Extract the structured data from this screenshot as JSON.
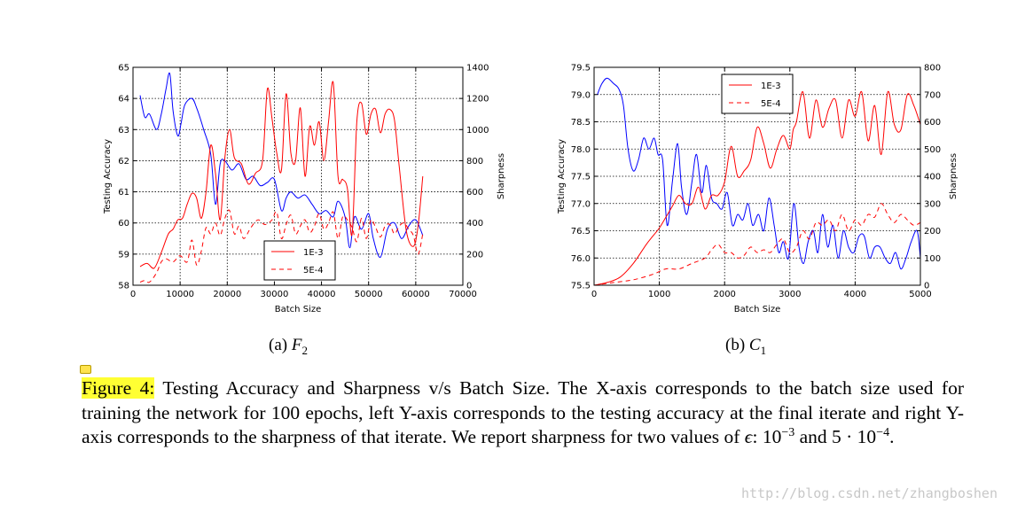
{
  "chart_data": [
    {
      "type": "line",
      "xlabel": "Batch Size",
      "ylabel_left": "Testing Accuracy",
      "ylabel_right": "Sharpness",
      "xlim": [
        0,
        70000
      ],
      "ylim_left": [
        58,
        65
      ],
      "ylim_right": [
        0,
        1400
      ],
      "xticks": [
        "0",
        "10000",
        "20000",
        "30000",
        "40000",
        "50000",
        "60000",
        "70000"
      ],
      "yticks_left": [
        "58",
        "59",
        "60",
        "61",
        "62",
        "63",
        "64",
        "65"
      ],
      "yticks_right": [
        "0",
        "200",
        "400",
        "600",
        "800",
        "1000",
        "1200",
        "1400"
      ],
      "grid": true,
      "legend_position": "lower-center",
      "subplot_label": "(a)",
      "subplot_symbol": "F",
      "subplot_subscript": "2",
      "colors": {
        "accuracy": "#0000ff",
        "sharpness": "#ff0000"
      },
      "series": [
        {
          "axis": "left",
          "style": "solid",
          "x": [
            1500,
            2500,
            3500,
            5000,
            6000,
            7000,
            7800,
            8500,
            9500,
            10200,
            11000,
            12500,
            13500,
            15000,
            16500,
            17500,
            18500,
            19500,
            21000,
            22500,
            24000,
            25500,
            27000,
            28500,
            30000,
            31500,
            32500,
            33500,
            35000,
            36500,
            38000,
            39500,
            41000,
            42500,
            43500,
            45000,
            46000,
            47000,
            48500,
            50000,
            51000,
            52500,
            54000,
            55500,
            57000,
            58500,
            60000,
            61500
          ],
          "y": [
            64.1,
            63.4,
            63.5,
            63.0,
            63.5,
            64.3,
            64.8,
            63.6,
            62.8,
            63.2,
            63.8,
            64.0,
            63.7,
            63.0,
            62.2,
            60.6,
            61.9,
            62.0,
            61.7,
            61.9,
            61.4,
            61.5,
            61.2,
            61.3,
            61.4,
            60.4,
            60.8,
            61.0,
            60.8,
            60.9,
            60.6,
            60.3,
            60.4,
            60.2,
            60.7,
            60.2,
            59.2,
            60.2,
            59.8,
            60.3,
            59.5,
            58.9,
            59.8,
            60.0,
            59.5,
            59.9,
            60.1,
            59.6
          ]
        },
        {
          "axis": "right",
          "style": "solid",
          "name": "1E-3",
          "x": [
            1500,
            3000,
            4500,
            6000,
            7500,
            8500,
            9500,
            10500,
            11500,
            12500,
            13500,
            14500,
            15500,
            16500,
            17500,
            18500,
            19500,
            20500,
            21500,
            23000,
            24500,
            26000,
            27500,
            28500,
            29500,
            30500,
            31500,
            32500,
            33500,
            34500,
            35500,
            36500,
            37500,
            38500,
            39500,
            40500,
            41500,
            42500,
            43500,
            44500,
            45500,
            46500,
            47500,
            48500,
            49500,
            50500,
            51500,
            52500,
            53500,
            54500,
            55500,
            56500,
            58000,
            59500,
            60500,
            61500
          ],
          "y": [
            120,
            140,
            110,
            210,
            330,
            360,
            420,
            430,
            520,
            590,
            560,
            430,
            600,
            900,
            720,
            420,
            820,
            1000,
            820,
            780,
            650,
            720,
            800,
            1260,
            1070,
            850,
            740,
            1230,
            850,
            800,
            1140,
            700,
            1020,
            900,
            1050,
            800,
            1050,
            1300,
            700,
            680,
            620,
            330,
            1050,
            1170,
            970,
            1100,
            1130,
            980,
            1100,
            1130,
            1060,
            760,
            350,
            250,
            380,
            700
          ]
        },
        {
          "axis": "right",
          "style": "dashed",
          "name": "5E-4",
          "x": [
            1500,
            2500,
            3500,
            5000,
            6000,
            7000,
            8500,
            10000,
            11500,
            12500,
            13500,
            14500,
            15500,
            16500,
            17500,
            18500,
            19500,
            20500,
            21500,
            22500,
            23500,
            25000,
            26500,
            28000,
            29500,
            30500,
            31500,
            32500,
            33500,
            34500,
            35500,
            36500,
            37500,
            38500,
            39500,
            40500,
            41500,
            42500,
            43500,
            44500,
            45500,
            46500,
            47500,
            48500,
            49500,
            50500,
            51500,
            52500,
            53500,
            54500,
            55500,
            56500,
            57500,
            58500,
            59500,
            60500,
            61500
          ],
          "y": [
            20,
            30,
            20,
            80,
            150,
            170,
            150,
            190,
            150,
            290,
            130,
            220,
            370,
            330,
            400,
            320,
            430,
            480,
            330,
            380,
            300,
            370,
            420,
            390,
            420,
            470,
            300,
            390,
            450,
            330,
            380,
            420,
            340,
            380,
            460,
            360,
            400,
            470,
            300,
            440,
            420,
            370,
            280,
            430,
            300,
            420,
            370,
            310,
            380,
            390,
            330,
            380,
            400,
            360,
            320,
            200,
            330
          ]
        }
      ]
    },
    {
      "type": "line",
      "xlabel": "Batch Size",
      "ylabel_left": "Testing Accuracy",
      "ylabel_right": "Sharpness",
      "xlim": [
        0,
        5000
      ],
      "ylim_left": [
        75.5,
        79.5
      ],
      "ylim_right": [
        0,
        800
      ],
      "xticks": [
        "0",
        "1000",
        "2000",
        "3000",
        "4000",
        "5000"
      ],
      "yticks_left": [
        "75.5",
        "76.0",
        "76.5",
        "77.0",
        "77.5",
        "78.0",
        "78.5",
        "79.0",
        "79.5"
      ],
      "yticks_right": [
        "0",
        "100",
        "200",
        "300",
        "400",
        "500",
        "600",
        "700",
        "800"
      ],
      "grid": true,
      "legend_position": "upper-left",
      "subplot_label": "(b)",
      "subplot_symbol": "C",
      "subplot_subscript": "1",
      "colors": {
        "accuracy": "#0000ff",
        "sharpness": "#ff0000"
      },
      "series": [
        {
          "axis": "left",
          "style": "solid",
          "x": [
            50,
            120,
            200,
            300,
            380,
            450,
            520,
            600,
            680,
            760,
            840,
            920,
            980,
            1050,
            1120,
            1200,
            1280,
            1340,
            1420,
            1500,
            1570,
            1650,
            1720,
            1800,
            1880,
            1960,
            2040,
            2120,
            2200,
            2280,
            2360,
            2430,
            2520,
            2600,
            2680,
            2760,
            2830,
            2900,
            2980,
            3060,
            3140,
            3210,
            3280,
            3360,
            3430,
            3500,
            3580,
            3660,
            3740,
            3820,
            3900,
            3980,
            4060,
            4140,
            4220,
            4300,
            4380,
            4460,
            4540,
            4620,
            4700,
            4780,
            4860,
            4950,
            5000
          ],
          "y": [
            79.0,
            79.2,
            79.3,
            79.2,
            79.1,
            78.8,
            78.0,
            77.6,
            77.8,
            78.2,
            78.0,
            78.2,
            77.9,
            77.8,
            76.6,
            77.4,
            78.1,
            77.3,
            76.8,
            77.4,
            77.9,
            77.2,
            77.7,
            77.1,
            77.0,
            76.9,
            77.2,
            76.6,
            76.8,
            76.7,
            77.0,
            76.6,
            76.8,
            76.5,
            77.1,
            76.6,
            76.1,
            76.3,
            76.0,
            77.0,
            76.2,
            75.9,
            76.3,
            76.5,
            76.1,
            76.8,
            76.2,
            76.6,
            76.0,
            76.5,
            76.2,
            76.1,
            76.4,
            76.4,
            76.0,
            76.2,
            76.2,
            76.0,
            75.9,
            76.1,
            75.8,
            76.0,
            76.3,
            76.5,
            76.0
          ]
        },
        {
          "axis": "right",
          "style": "solid",
          "name": "1E-3",
          "x": [
            0,
            200,
            400,
            600,
            800,
            900,
            1000,
            1100,
            1200,
            1300,
            1400,
            1500,
            1600,
            1700,
            1800,
            1900,
            2000,
            2100,
            2200,
            2300,
            2400,
            2500,
            2600,
            2700,
            2800,
            2900,
            3000,
            3050,
            3100,
            3200,
            3300,
            3400,
            3500,
            3600,
            3700,
            3800,
            3900,
            4000,
            4100,
            4200,
            4300,
            4400,
            4500,
            4600,
            4700,
            4800,
            4900,
            5000
          ],
          "y": [
            0,
            10,
            30,
            80,
            150,
            180,
            210,
            250,
            290,
            330,
            300,
            300,
            360,
            280,
            330,
            330,
            380,
            510,
            400,
            420,
            460,
            580,
            520,
            430,
            500,
            550,
            500,
            570,
            600,
            710,
            540,
            680,
            580,
            650,
            680,
            540,
            680,
            620,
            710,
            530,
            660,
            480,
            710,
            590,
            570,
            700,
            660,
            590
          ]
        },
        {
          "axis": "right",
          "style": "dashed",
          "name": "5E-4",
          "x": [
            0,
            300,
            600,
            900,
            1100,
            1300,
            1500,
            1700,
            1800,
            1900,
            2000,
            2100,
            2200,
            2300,
            2400,
            2500,
            2600,
            2700,
            2800,
            2900,
            3000,
            3100,
            3200,
            3300,
            3400,
            3500,
            3600,
            3700,
            3800,
            3900,
            4000,
            4100,
            4200,
            4300,
            4400,
            4500,
            4600,
            4700,
            4800,
            4900,
            5000
          ],
          "y": [
            0,
            10,
            20,
            40,
            60,
            60,
            80,
            100,
            130,
            150,
            120,
            120,
            100,
            110,
            140,
            120,
            130,
            120,
            150,
            170,
            120,
            140,
            200,
            170,
            230,
            220,
            240,
            200,
            260,
            200,
            240,
            220,
            260,
            250,
            300,
            260,
            230,
            260,
            240,
            220,
            230
          ]
        }
      ]
    }
  ],
  "caption": {
    "label": "Figure 4:",
    "text_before_math": " Testing Accuracy and Sharpness v/s Batch Size. The X-axis corresponds to the batch size used for training the network for 100 epochs, left Y-axis corresponds to the testing accuracy at the final iterate and right Y-axis corresponds to the sharpness of that iterate.  We report sharpness for two values of ",
    "epsilon": "ϵ",
    "colon": ": ",
    "base1": "10",
    "exp1": "−3",
    "and": " and ",
    "base2": "5 · 10",
    "exp2": "−4",
    "end": "."
  },
  "watermark": "http://blog.csdn.net/zhangboshen"
}
